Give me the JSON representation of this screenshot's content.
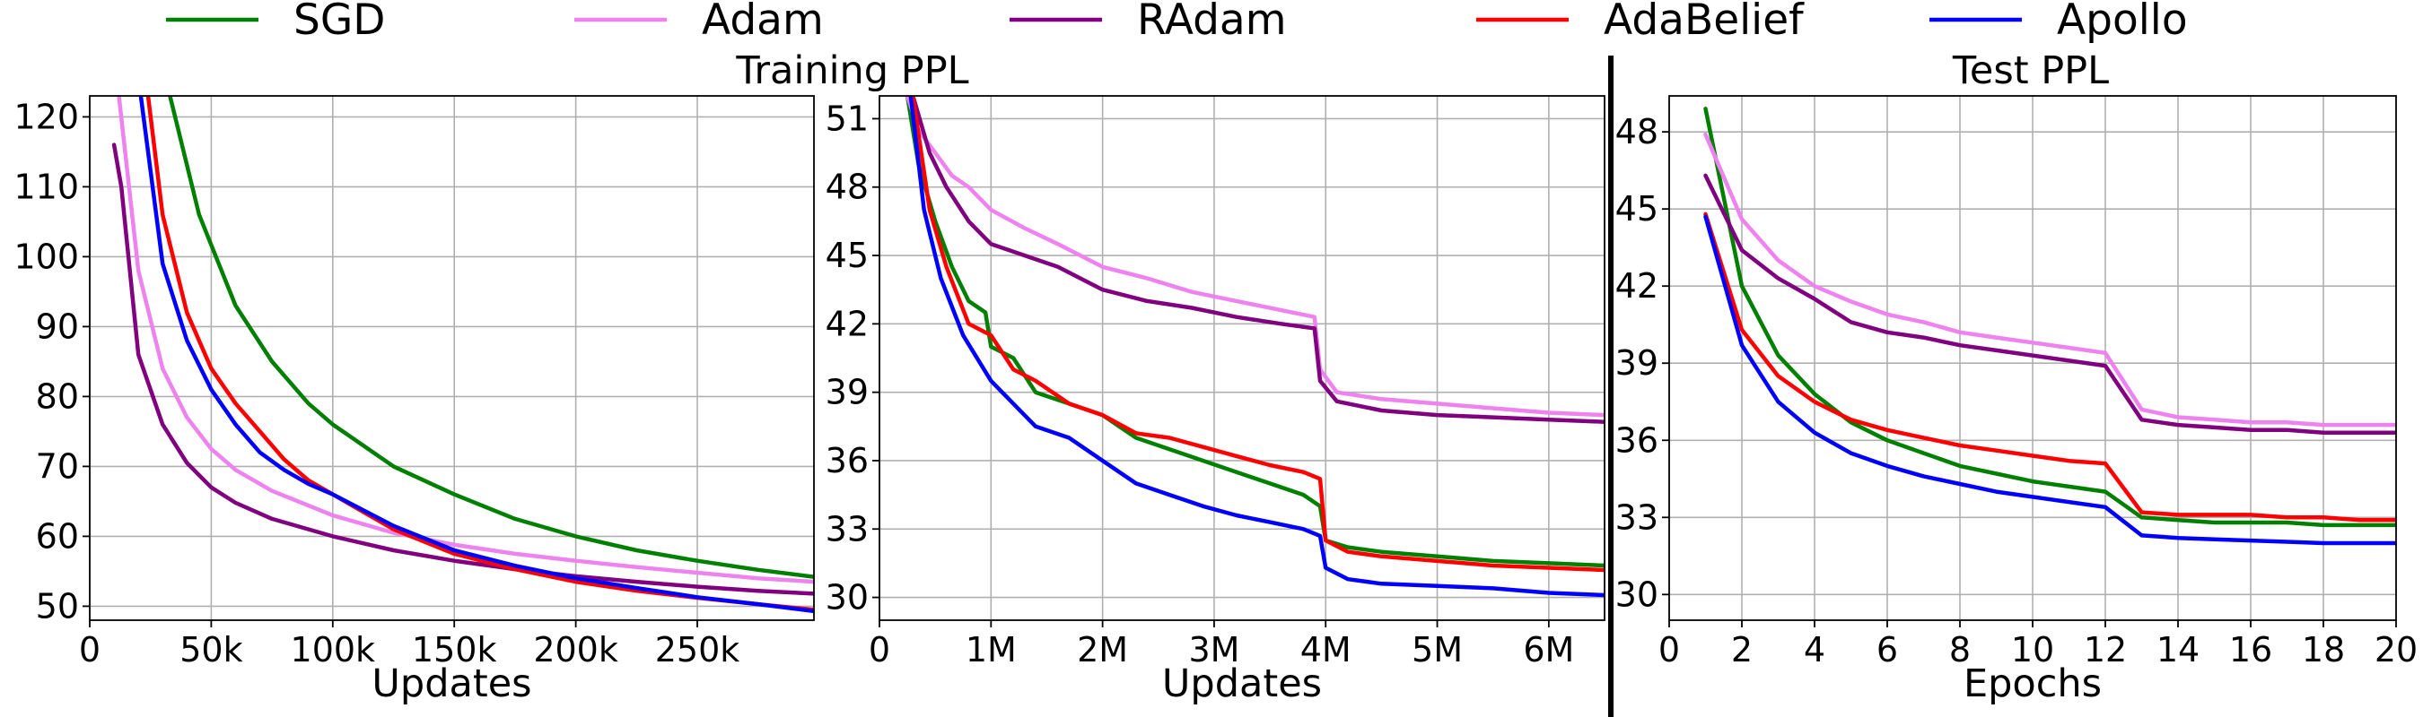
{
  "legend": [
    {
      "name": "SGD",
      "color": "#008000"
    },
    {
      "name": "Adam",
      "color": "#ee82ee"
    },
    {
      "name": "RAdam",
      "color": "#800080"
    },
    {
      "name": "AdaBelief",
      "color": "#ff0000"
    },
    {
      "name": "Apollo",
      "color": "#0000ff"
    }
  ],
  "chart_data": [
    {
      "type": "line",
      "title": "",
      "xlabel": "Updates",
      "ylabel": "",
      "xlim": [
        0,
        298000
      ],
      "ylim": [
        48,
        123
      ],
      "xticks": [
        0,
        50000,
        100000,
        150000,
        200000,
        250000
      ],
      "xtick_labels": [
        "0",
        "50k",
        "100k",
        "150k",
        "200k",
        "250k"
      ],
      "yticks": [
        50,
        60,
        70,
        80,
        90,
        100,
        110,
        120
      ],
      "ytick_labels": [
        "50",
        "60",
        "70",
        "80",
        "90",
        "100",
        "110",
        "120"
      ],
      "grid": true,
      "series": [
        {
          "name": "SGD",
          "color": "#008000",
          "x": [
            33000,
            45000,
            60000,
            75000,
            90000,
            100000,
            125000,
            150000,
            175000,
            200000,
            225000,
            250000,
            275000,
            298000
          ],
          "y": [
            123,
            106,
            93,
            85,
            79,
            76,
            70,
            66,
            62.5,
            60,
            58,
            56.5,
            55.2,
            54.2
          ]
        },
        {
          "name": "Adam",
          "color": "#ee82ee",
          "x": [
            12000,
            20000,
            30000,
            40000,
            50000,
            60000,
            75000,
            100000,
            125000,
            150000,
            175000,
            200000,
            225000,
            250000,
            275000,
            298000
          ],
          "y": [
            123,
            98,
            84,
            77,
            72.5,
            69.5,
            66.5,
            63,
            60.5,
            58.8,
            57.5,
            56.5,
            55.6,
            54.8,
            54,
            53.5
          ]
        },
        {
          "name": "RAdam",
          "color": "#800080",
          "x": [
            10000,
            13000,
            20000,
            30000,
            40000,
            50000,
            60000,
            75000,
            100000,
            125000,
            150000,
            175000,
            200000,
            225000,
            250000,
            275000,
            298000
          ],
          "y": [
            116,
            110,
            86,
            76,
            70.5,
            67,
            64.8,
            62.5,
            60,
            58,
            56.5,
            55.3,
            54.3,
            53.5,
            52.8,
            52.2,
            51.8
          ]
        },
        {
          "name": "AdaBelief",
          "color": "#ff0000",
          "x": [
            24000,
            30000,
            40000,
            50000,
            60000,
            70000,
            80000,
            90000,
            100000,
            125000,
            150000,
            175000,
            200000,
            225000,
            250000,
            275000,
            298000
          ],
          "y": [
            123,
            106,
            92,
            84,
            79,
            75,
            71,
            68,
            66,
            61,
            57.5,
            55.3,
            53.5,
            52.2,
            51.2,
            50.3,
            49.5
          ]
        },
        {
          "name": "Apollo",
          "color": "#0000ff",
          "x": [
            21000,
            30000,
            40000,
            50000,
            60000,
            70000,
            80000,
            90000,
            100000,
            125000,
            150000,
            175000,
            200000,
            225000,
            250000,
            275000,
            298000
          ],
          "y": [
            123,
            99,
            88,
            81,
            76,
            72,
            69.5,
            67.5,
            66,
            61.5,
            58,
            55.8,
            54,
            52.6,
            51.3,
            50.3,
            49.3
          ]
        }
      ]
    },
    {
      "type": "line",
      "title": "Training PPL",
      "xlabel": "Updates",
      "ylabel": "",
      "xlim": [
        0,
        6500000
      ],
      "ylim": [
        29,
        52
      ],
      "xticks": [
        0,
        1000000,
        2000000,
        3000000,
        4000000,
        5000000,
        6000000
      ],
      "xtick_labels": [
        "0",
        "1M",
        "2M",
        "3M",
        "4M",
        "5M",
        "6M"
      ],
      "yticks": [
        30,
        33,
        36,
        39,
        42,
        45,
        48,
        51
      ],
      "ytick_labels": [
        "30",
        "33",
        "36",
        "39",
        "42",
        "45",
        "48",
        "51"
      ],
      "grid": true,
      "series": [
        {
          "name": "SGD",
          "color": "#008000",
          "x": [
            250000,
            350000,
            500000,
            650000,
            800000,
            950000,
            1000000,
            1200000,
            1400000,
            1700000,
            2000000,
            2300000,
            2600000,
            2900000,
            3200000,
            3500000,
            3800000,
            3950000,
            4000000,
            4200000,
            4500000,
            5000000,
            5500000,
            6000000,
            6500000
          ],
          "y": [
            52,
            49,
            46.5,
            44.5,
            43,
            42.5,
            41,
            40.5,
            39,
            38.5,
            38,
            37,
            36.5,
            36,
            35.5,
            35,
            34.5,
            34,
            32.5,
            32.2,
            32,
            31.8,
            31.6,
            31.5,
            31.4
          ]
        },
        {
          "name": "Adam",
          "color": "#ee82ee",
          "x": [
            250000,
            350000,
            500000,
            650000,
            800000,
            1000000,
            1300000,
            1600000,
            2000000,
            2400000,
            2800000,
            3200000,
            3600000,
            3900000,
            3950000,
            4100000,
            4500000,
            5000000,
            5500000,
            6000000,
            6500000
          ],
          "y": [
            52,
            50.5,
            49.5,
            48.5,
            48,
            47,
            46.2,
            45.5,
            44.5,
            44,
            43.4,
            43,
            42.6,
            42.3,
            40,
            39,
            38.7,
            38.5,
            38.3,
            38.1,
            38
          ]
        },
        {
          "name": "RAdam",
          "color": "#800080",
          "x": [
            300000,
            450000,
            600000,
            800000,
            1000000,
            1300000,
            1600000,
            2000000,
            2400000,
            2800000,
            3200000,
            3600000,
            3900000,
            3950000,
            4100000,
            4500000,
            5000000,
            5500000,
            6000000,
            6500000
          ],
          "y": [
            52,
            49.5,
            48,
            46.5,
            45.5,
            45,
            44.5,
            43.5,
            43,
            42.7,
            42.3,
            42,
            41.8,
            39.5,
            38.6,
            38.2,
            38,
            37.9,
            37.8,
            37.7
          ]
        },
        {
          "name": "AdaBelief",
          "color": "#ff0000",
          "x": [
            300000,
            450000,
            600000,
            800000,
            1000000,
            1200000,
            1400000,
            1700000,
            2000000,
            2300000,
            2600000,
            2900000,
            3200000,
            3500000,
            3800000,
            3950000,
            4000000,
            4200000,
            4500000,
            5000000,
            5500000,
            6000000,
            6500000
          ],
          "y": [
            52,
            47,
            44.5,
            42,
            41.5,
            40,
            39.5,
            38.5,
            38,
            37.2,
            37,
            36.6,
            36.2,
            35.8,
            35.5,
            35.2,
            32.5,
            32,
            31.8,
            31.6,
            31.4,
            31.3,
            31.2
          ]
        },
        {
          "name": "Apollo",
          "color": "#0000ff",
          "x": [
            280000,
            400000,
            550000,
            750000,
            1000000,
            1200000,
            1400000,
            1700000,
            2000000,
            2300000,
            2600000,
            2900000,
            3200000,
            3500000,
            3800000,
            3950000,
            4000000,
            4200000,
            4500000,
            5000000,
            5500000,
            6000000,
            6500000
          ],
          "y": [
            52,
            47,
            44,
            41.5,
            39.5,
            38.5,
            37.5,
            37,
            36,
            35,
            34.5,
            34,
            33.6,
            33.3,
            33,
            32.7,
            31.3,
            30.8,
            30.6,
            30.5,
            30.4,
            30.2,
            30.1
          ]
        }
      ]
    },
    {
      "type": "line",
      "title": "Test PPL",
      "xlabel": "Epochs",
      "ylabel": "",
      "xlim": [
        0,
        20
      ],
      "ylim": [
        29,
        49.4
      ],
      "xticks": [
        0,
        2,
        4,
        6,
        8,
        10,
        12,
        14,
        16,
        18,
        20
      ],
      "xtick_labels": [
        "0",
        "2",
        "4",
        "6",
        "8",
        "10",
        "12",
        "14",
        "16",
        "18",
        "20"
      ],
      "yticks": [
        30,
        33,
        36,
        39,
        42,
        45,
        48
      ],
      "ytick_labels": [
        "30",
        "33",
        "36",
        "39",
        "42",
        "45",
        "48"
      ],
      "grid": true,
      "series": [
        {
          "name": "SGD",
          "color": "#008000",
          "x": [
            1,
            2,
            3,
            4,
            5,
            6,
            7,
            8,
            9,
            10,
            11,
            12,
            13,
            14,
            15,
            16,
            17,
            18,
            19,
            20
          ],
          "y": [
            48.9,
            42,
            39.3,
            37.8,
            36.7,
            36,
            35.5,
            35,
            34.7,
            34.4,
            34.2,
            34,
            33,
            32.9,
            32.8,
            32.8,
            32.8,
            32.7,
            32.7,
            32.7
          ]
        },
        {
          "name": "Adam",
          "color": "#ee82ee",
          "x": [
            1,
            2,
            3,
            4,
            5,
            6,
            7,
            8,
            9,
            10,
            11,
            12,
            13,
            14,
            15,
            16,
            17,
            18,
            19,
            20
          ],
          "y": [
            47.9,
            44.6,
            43,
            42,
            41.4,
            40.9,
            40.6,
            40.2,
            40,
            39.8,
            39.6,
            39.4,
            37.2,
            36.9,
            36.8,
            36.7,
            36.7,
            36.6,
            36.6,
            36.6
          ]
        },
        {
          "name": "RAdam",
          "color": "#800080",
          "x": [
            1,
            2,
            3,
            4,
            5,
            6,
            7,
            8,
            9,
            10,
            11,
            12,
            13,
            14,
            15,
            16,
            17,
            18,
            19,
            20
          ],
          "y": [
            46.3,
            43.4,
            42.3,
            41.5,
            40.6,
            40.2,
            40,
            39.7,
            39.5,
            39.3,
            39.1,
            38.9,
            36.8,
            36.6,
            36.5,
            36.4,
            36.4,
            36.3,
            36.3,
            36.3
          ]
        },
        {
          "name": "AdaBelief",
          "color": "#ff0000",
          "x": [
            1,
            2,
            3,
            4,
            5,
            6,
            7,
            8,
            9,
            10,
            11,
            12,
            13,
            14,
            15,
            16,
            17,
            18,
            19,
            20
          ],
          "y": [
            44.8,
            40.3,
            38.5,
            37.5,
            36.8,
            36.4,
            36.1,
            35.8,
            35.6,
            35.4,
            35.2,
            35.1,
            33.2,
            33.1,
            33.1,
            33.1,
            33,
            33,
            32.9,
            32.9
          ]
        },
        {
          "name": "Apollo",
          "color": "#0000ff",
          "x": [
            1,
            2,
            3,
            4,
            5,
            6,
            7,
            8,
            9,
            10,
            11,
            12,
            13,
            14,
            15,
            16,
            17,
            18,
            19,
            20
          ],
          "y": [
            44.7,
            39.7,
            37.5,
            36.3,
            35.5,
            35,
            34.6,
            34.3,
            34,
            33.8,
            33.6,
            33.4,
            32.3,
            32.2,
            32.15,
            32.1,
            32.05,
            32,
            32,
            32
          ]
        }
      ]
    }
  ]
}
